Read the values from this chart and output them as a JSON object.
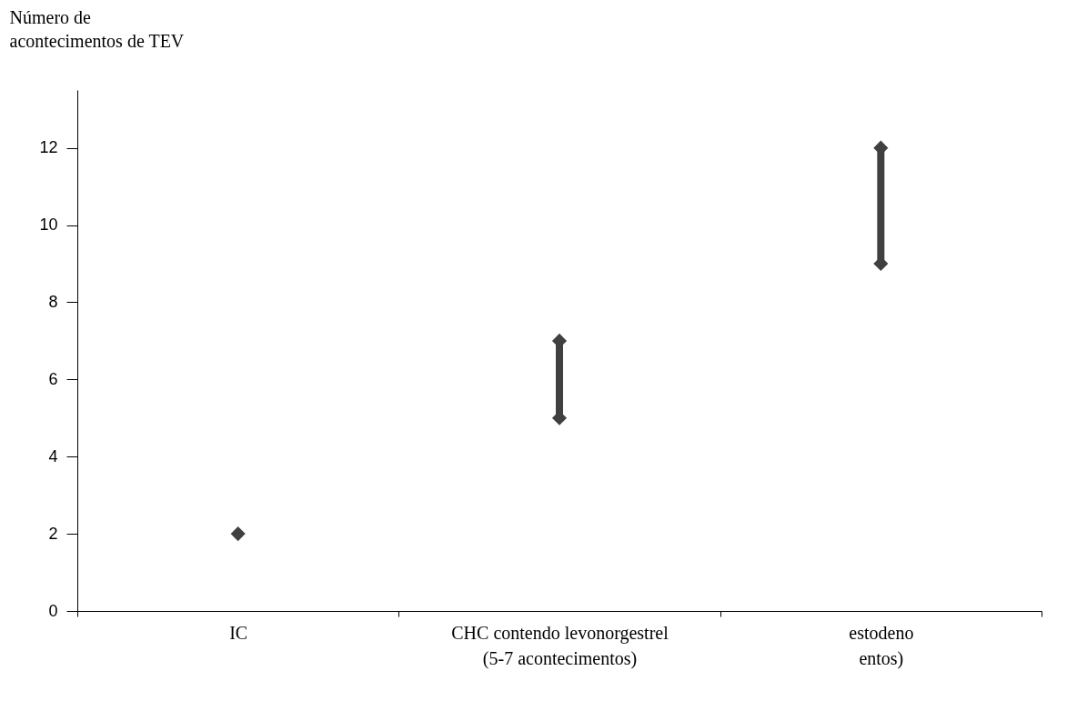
{
  "chart_data": {
    "type": "line",
    "ylabel": "Número de acontecimentos de TEV",
    "categories": [
      "IC",
      "CHC contendo levonorgestrel\n(5-7 acontecimentos)",
      "estodeno\nentos)"
    ],
    "series": [
      {
        "color": "#404040",
        "x": [
          "IC"
        ],
        "values": [
          2
        ]
      },
      {
        "color": "#404040",
        "x": [
          "CHC contendo levonorgestrel\n(5-7 acontecimentos)",
          "CHC contendo levonorgestrel\n(5-7 acontecimentos)"
        ],
        "values": [
          5,
          7
        ]
      },
      {
        "color": "#404040",
        "x": [
          "estodeno\nentos)",
          "estodeno\nentos)"
        ],
        "values": [
          9,
          12
        ]
      }
    ],
    "marker": "diamond",
    "line_style": "solid",
    "ylim": [
      0,
      13.5
    ],
    "yticks": [
      0,
      2,
      4,
      6,
      8,
      10,
      12
    ]
  }
}
